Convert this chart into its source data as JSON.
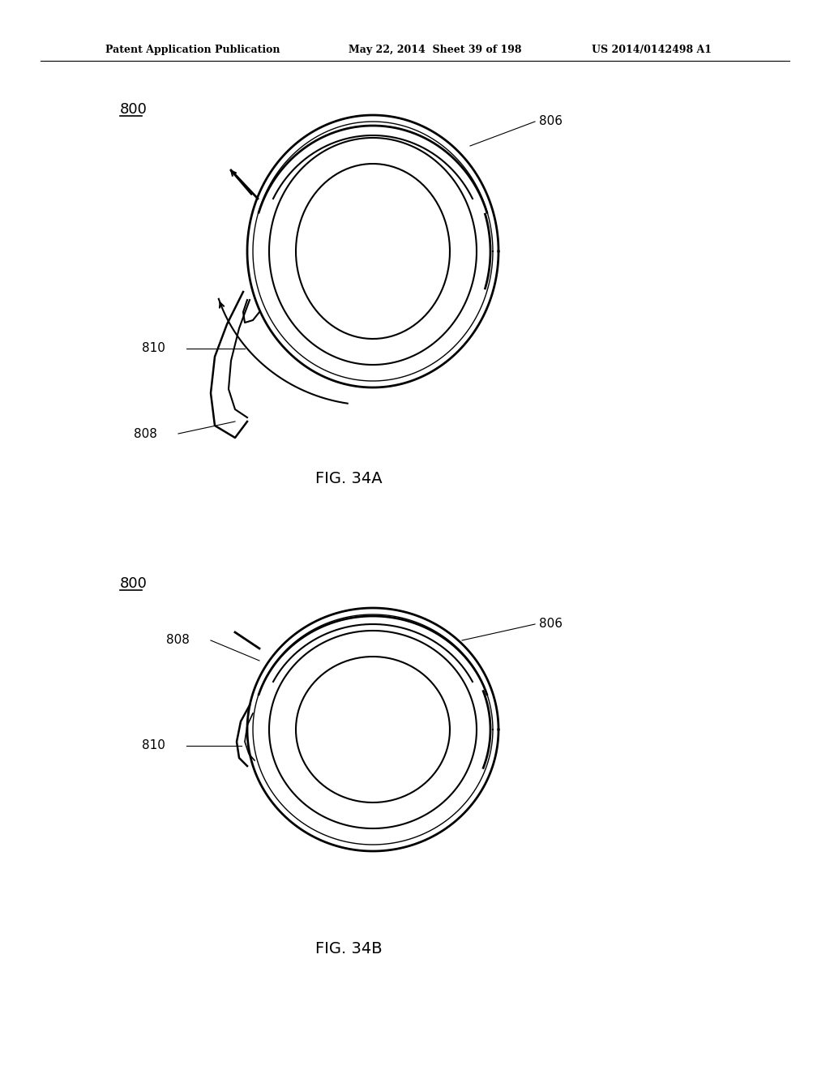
{
  "background_color": "#ffffff",
  "header_text": "Patent Application Publication",
  "header_date": "May 22, 2014  Sheet 39 of 198",
  "header_patent": "US 2014/0142498 A1",
  "fig_a_label": "FIG. 34A",
  "fig_b_label": "FIG. 34B",
  "label_800_a": "800",
  "label_800_b": "800",
  "label_806_a": "806",
  "label_808_a": "808",
  "label_810_a": "810",
  "label_806_b": "806",
  "label_808_b": "808",
  "label_810_b": "810",
  "line_color": "#000000",
  "text_color": "#000000"
}
